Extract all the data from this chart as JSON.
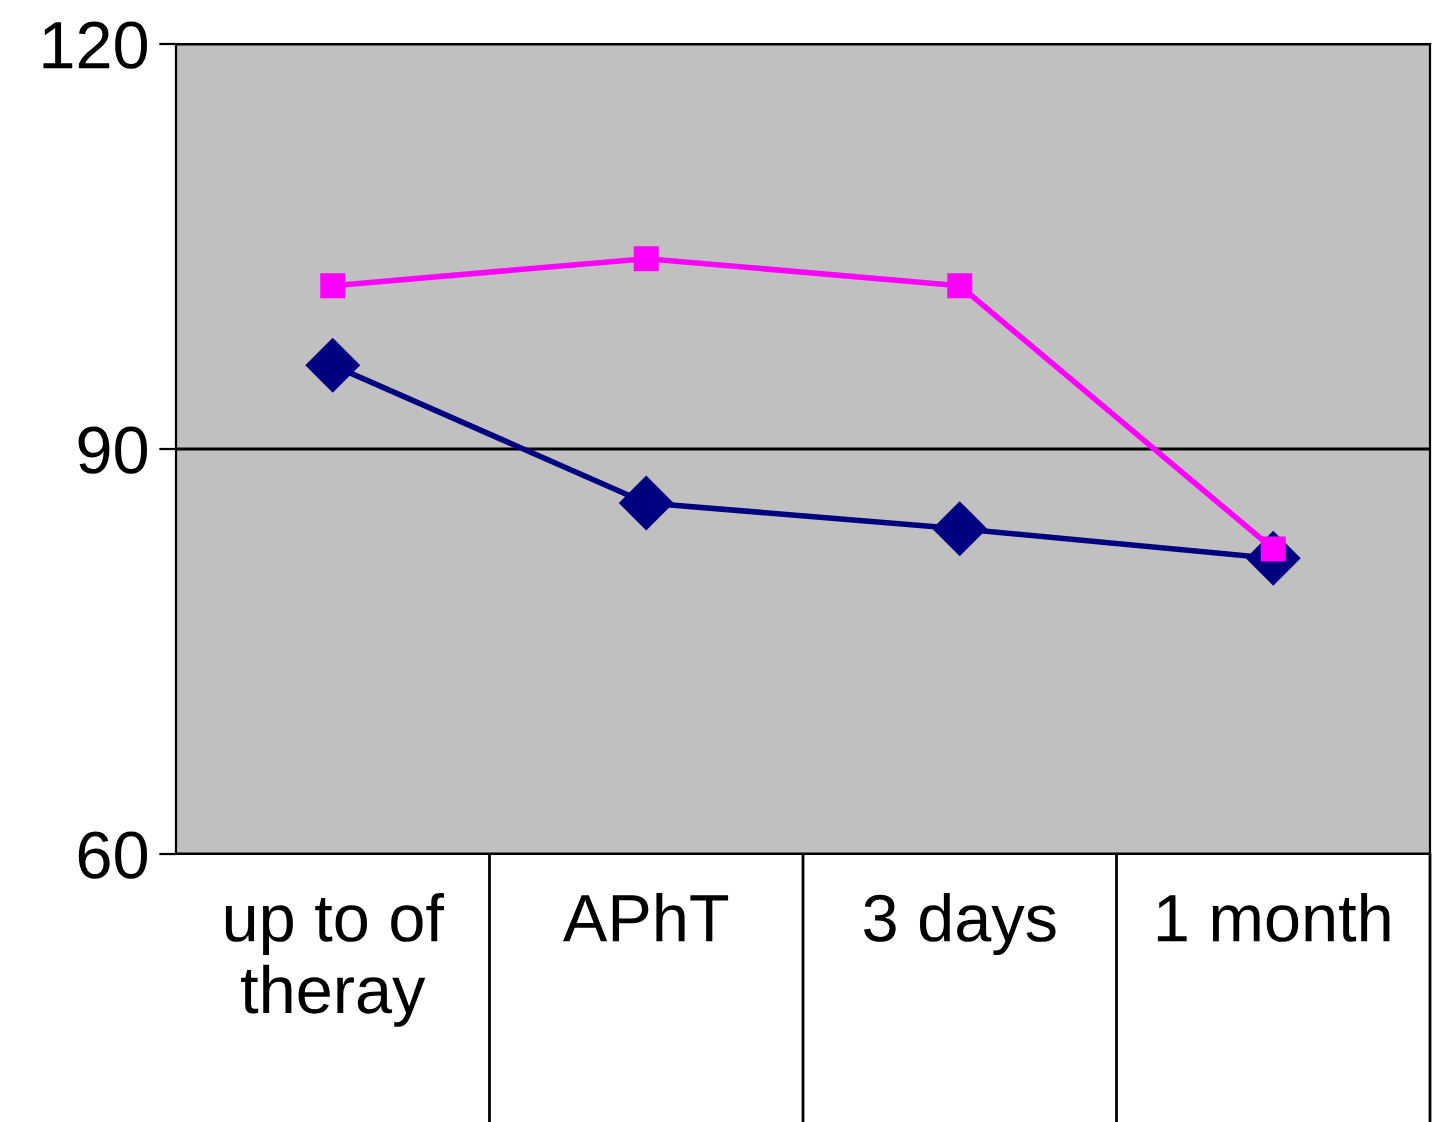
{
  "chart_data": {
    "type": "line",
    "categories": [
      "up to of\ntheray",
      "APhT",
      "3 days",
      "1 month"
    ],
    "series": [
      {
        "color": "#000080",
        "marker": "diamond",
        "values": [
          96.2,
          86,
          84.1,
          81.9
        ]
      },
      {
        "color": "#ff00ff",
        "marker": "square",
        "values": [
          102.1,
          104.1,
          102.1,
          82.6
        ]
      }
    ],
    "ylim": [
      60,
      120
    ],
    "yticks": [
      60,
      90,
      120
    ],
    "grid": "y",
    "legend": false
  }
}
